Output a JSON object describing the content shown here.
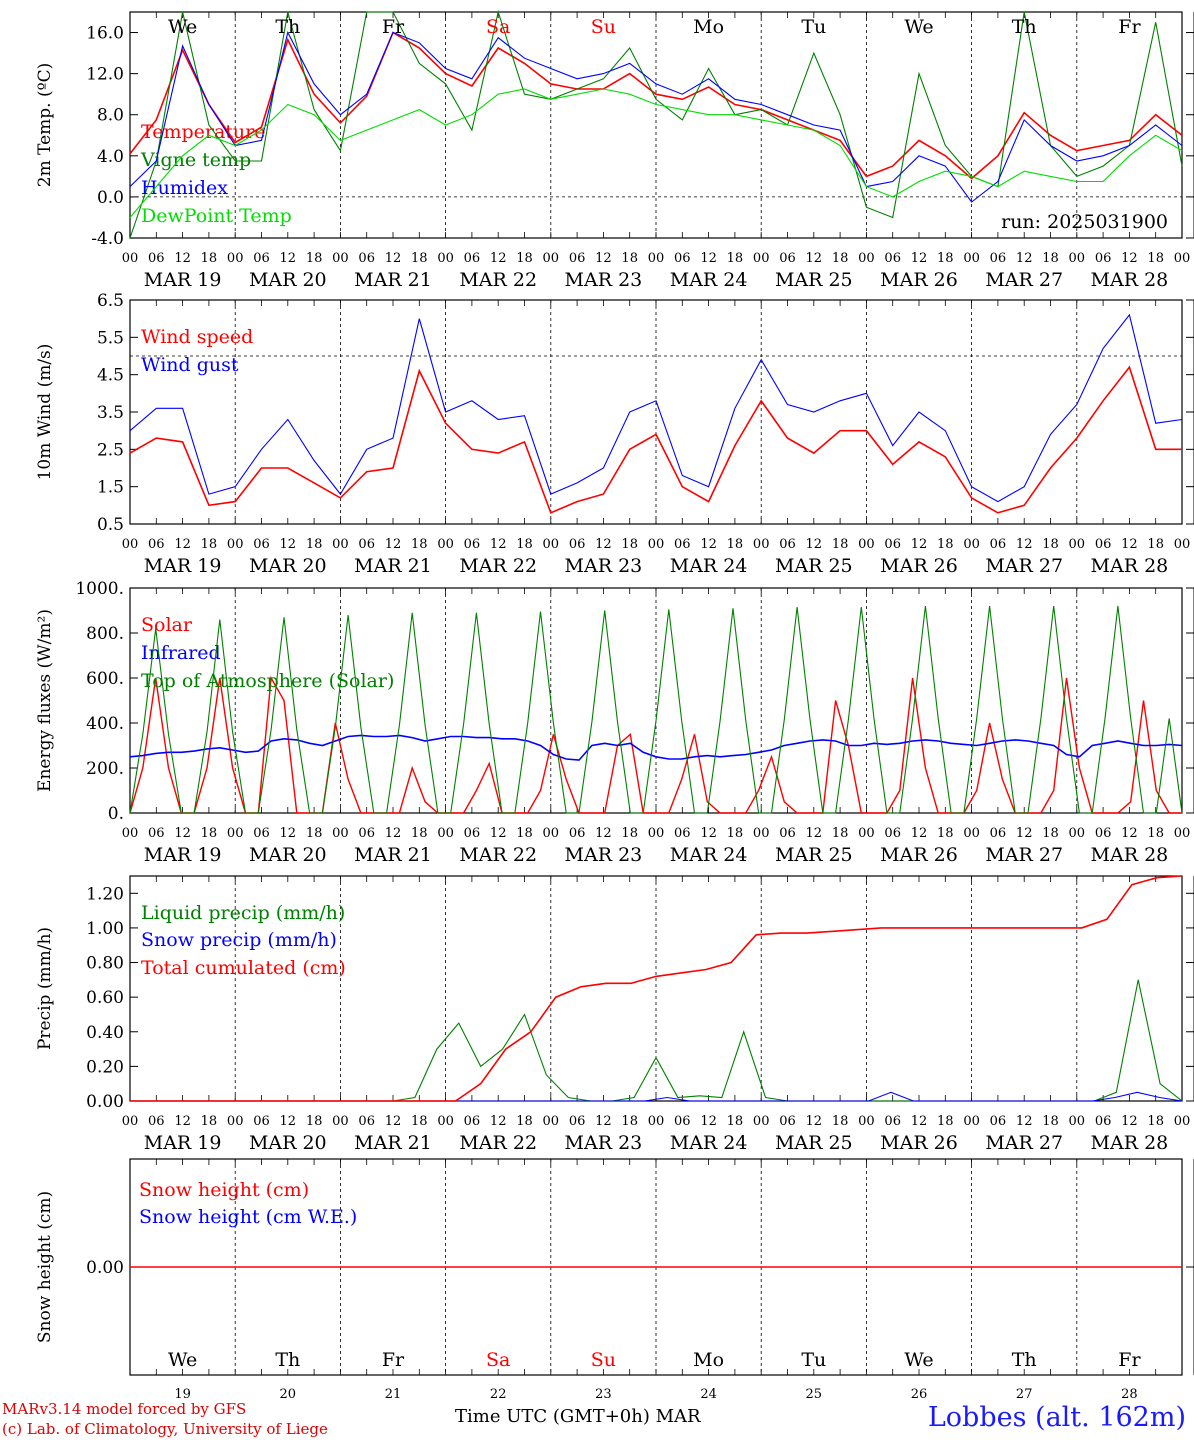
{
  "run_label": "run: 2025031900",
  "days": [
    "MAR 19",
    "MAR 20",
    "MAR 21",
    "MAR 22",
    "MAR 23",
    "MAR 24",
    "MAR 25",
    "MAR 26",
    "MAR 27",
    "MAR 28"
  ],
  "day_numbers": [
    "19",
    "20",
    "21",
    "22",
    "23",
    "24",
    "25",
    "26",
    "27",
    "28"
  ],
  "weekdays": [
    "We",
    "Th",
    "Fr",
    "Sa",
    "Su",
    "Mo",
    "Tu",
    "We",
    "Th",
    "Fr"
  ],
  "weekend_color": "#ff0000",
  "weekday_color": "#000000",
  "hour_ticks": [
    "00",
    "06",
    "12",
    "18"
  ],
  "footer": {
    "model": "MARv3.14 model forced by GFS",
    "lab": "(c) Lab. of Climatology, University of Liege",
    "time_axis": "Time UTC (GMT+0h)",
    "month": "MAR",
    "station": "Lobbes (alt. 162m)"
  },
  "chart_data": [
    {
      "type": "line",
      "ylabel": "2m Temp. (ºC)",
      "yticks": [
        "16.0",
        "12.0",
        "8.0",
        "4.0",
        "0.0",
        "-4.0"
      ],
      "ylim": [
        -4,
        18
      ],
      "hline": 0,
      "x_step_hours": 6,
      "series": [
        {
          "name": "Temperature",
          "color": "#ff0000",
          "width": 1.6,
          "values": [
            4.2,
            7.5,
            14.3,
            9,
            5.3,
            6.8,
            15.3,
            10,
            7.2,
            9.8,
            16,
            14.5,
            12,
            10.8,
            14.5,
            13,
            11,
            10.5,
            10.5,
            12,
            10,
            9.5,
            10.7,
            9,
            8.5,
            7.5,
            6.5,
            5.5,
            2,
            3,
            5.5,
            4,
            1.8,
            4,
            8.2,
            6,
            4.5,
            5,
            5.5,
            8,
            6
          ]
        },
        {
          "name": "Vigne temp",
          "color": "#008000",
          "width": 1.1,
          "values": [
            -4,
            3.5,
            18,
            7,
            3.5,
            3.5,
            18,
            8.5,
            4.5,
            18,
            18,
            13,
            11,
            6.5,
            18,
            10,
            9.5,
            10.5,
            11.5,
            14.5,
            9.5,
            7.5,
            12.5,
            8,
            8.5,
            7,
            14,
            8,
            -1,
            -2,
            12,
            5,
            2,
            1,
            18,
            5,
            2,
            3,
            5,
            17,
            3
          ]
        },
        {
          "name": "Humidex",
          "color": "#0000ff",
          "width": 1.1,
          "values": [
            1,
            3.5,
            14.7,
            9,
            5,
            5.5,
            16,
            11,
            8,
            10,
            16,
            15,
            12.5,
            11.5,
            15.5,
            13.5,
            12.5,
            11.5,
            12,
            13,
            11,
            10,
            11.5,
            9.5,
            9,
            8,
            7,
            6.5,
            1,
            1.5,
            4,
            3,
            -0.5,
            1.5,
            7.5,
            5,
            3.5,
            4,
            5,
            7,
            5
          ]
        },
        {
          "name": "DewPoint Temp",
          "color": "#00dd00",
          "width": 1.1,
          "values": [
            -2,
            1,
            4,
            6,
            5,
            6.5,
            9,
            8,
            5.5,
            6.5,
            7.5,
            8.5,
            7,
            8,
            10,
            10.5,
            9.5,
            10,
            10.5,
            10,
            9,
            8.5,
            8,
            8,
            7.5,
            7,
            6.5,
            5,
            1,
            0,
            1.5,
            2.5,
            2,
            1,
            2.5,
            2,
            1.5,
            1.5,
            4,
            6,
            4.5
          ]
        }
      ]
    },
    {
      "type": "line",
      "ylabel": "10m Wind (m/s)",
      "yticks": [
        "6.5",
        "5.5",
        "4.5",
        "3.5",
        "2.5",
        "1.5",
        "0.5"
      ],
      "ylim": [
        0.5,
        6.5
      ],
      "hline": 5,
      "x_step_hours": 6,
      "series": [
        {
          "name": "Wind speed",
          "color": "#ff0000",
          "width": 1.6,
          "values": [
            2.4,
            2.8,
            2.7,
            1,
            1.1,
            2,
            2,
            1.6,
            1.2,
            1.9,
            2,
            4.6,
            3.2,
            2.5,
            2.4,
            2.7,
            0.8,
            1.1,
            1.3,
            2.5,
            2.9,
            1.5,
            1.1,
            2.6,
            3.8,
            2.8,
            2.4,
            3,
            3,
            2.1,
            2.7,
            2.3,
            1.2,
            0.8,
            1,
            2,
            2.8,
            3.8,
            4.7,
            2.5,
            2.5
          ]
        },
        {
          "name": "Wind gust",
          "color": "#0000ff",
          "width": 1.1,
          "values": [
            3,
            3.6,
            3.6,
            1.3,
            1.5,
            2.5,
            3.3,
            2.2,
            1.3,
            2.5,
            2.8,
            6,
            3.5,
            3.8,
            3.3,
            3.4,
            1.3,
            1.6,
            2,
            3.5,
            3.8,
            1.8,
            1.5,
            3.6,
            4.9,
            3.7,
            3.5,
            3.8,
            4,
            2.6,
            3.5,
            3,
            1.5,
            1.1,
            1.5,
            2.9,
            3.7,
            5.2,
            6.1,
            3.2,
            3.3
          ]
        }
      ]
    },
    {
      "type": "line",
      "ylabel": "Energy fluxes (W/m²)",
      "yticks": [
        "1000.",
        "800.",
        "600.",
        "400.",
        "200.",
        "0."
      ],
      "ylim": [
        0,
        1000
      ],
      "x_step_hours": 6,
      "series": [
        {
          "name": "Solar",
          "color": "#ff0000",
          "width": 1.4,
          "values": [
            0,
            200,
            600,
            200,
            0,
            0,
            200,
            600,
            200,
            0,
            0,
            600,
            500,
            0,
            0,
            0,
            400,
            150,
            0,
            0,
            0,
            0,
            200,
            50,
            0,
            0,
            0,
            100,
            220,
            0,
            0,
            0,
            100,
            350,
            150,
            0,
            0,
            0,
            300,
            350,
            0,
            0,
            0,
            150,
            350,
            50,
            0,
            0,
            0,
            100,
            250,
            50,
            0,
            0,
            0,
            500,
            300,
            0,
            0,
            0,
            100,
            600,
            200,
            0,
            0,
            0,
            100,
            400,
            150,
            0,
            0,
            0,
            100,
            600,
            200,
            0,
            0,
            0,
            50,
            500,
            100,
            0,
            0
          ]
        },
        {
          "name": "Infrared",
          "color": "#0000ff",
          "width": 1.6,
          "values": [
            250,
            255,
            265,
            270,
            270,
            275,
            285,
            290,
            280,
            270,
            275,
            320,
            330,
            325,
            310,
            300,
            320,
            340,
            345,
            340,
            340,
            345,
            335,
            320,
            330,
            340,
            340,
            335,
            335,
            330,
            330,
            320,
            300,
            260,
            240,
            235,
            300,
            310,
            300,
            310,
            270,
            250,
            240,
            240,
            250,
            255,
            250,
            255,
            260,
            270,
            280,
            300,
            310,
            320,
            325,
            320,
            300,
            300,
            310,
            305,
            310,
            320,
            325,
            320,
            310,
            305,
            300,
            310,
            320,
            325,
            320,
            310,
            300,
            260,
            250,
            300,
            310,
            320,
            310,
            300,
            300,
            305,
            300
          ]
        },
        {
          "name": "Top of Atmosphere (Solar)",
          "color": "#008000",
          "width": 1.1,
          "values": [
            0,
            350,
            820,
            350,
            0,
            0,
            360,
            860,
            360,
            0,
            0,
            370,
            870,
            370,
            0,
            0,
            380,
            880,
            380,
            0,
            0,
            390,
            890,
            390,
            0,
            0,
            395,
            890,
            395,
            0,
            0,
            400,
            895,
            400,
            0,
            0,
            405,
            900,
            405,
            0,
            0,
            410,
            905,
            410,
            0,
            0,
            410,
            910,
            410,
            0,
            0,
            415,
            915,
            415,
            0,
            0,
            415,
            915,
            415,
            0,
            0,
            420,
            920,
            420,
            0,
            0,
            420,
            920,
            420,
            0,
            0,
            420,
            920,
            420,
            0,
            0,
            420,
            920,
            420,
            0,
            0,
            420,
            0
          ]
        }
      ]
    },
    {
      "type": "line",
      "ylabel": "Precip (mm/h)",
      "yticks": [
        "1.20",
        "1.00",
        "0.80",
        "0.60",
        "0.40",
        "0.20",
        "0.00"
      ],
      "ylim": [
        0,
        1.3
      ],
      "x_step_hours": 6,
      "series": [
        {
          "name": "Liquid precip (mm/h)",
          "color": "#008000",
          "width": 1.1,
          "values": [
            0,
            0,
            0,
            0,
            0,
            0,
            0,
            0,
            0,
            0,
            0,
            0,
            0,
            0.02,
            0.3,
            0.45,
            0.2,
            0.3,
            0.5,
            0.15,
            0.02,
            0,
            0,
            0.02,
            0.25,
            0.02,
            0.03,
            0.02,
            0.4,
            0.02,
            0,
            0,
            0,
            0,
            0,
            0,
            0,
            0,
            0,
            0,
            0,
            0,
            0,
            0,
            0,
            0.05,
            0.7,
            0.1,
            0
          ]
        },
        {
          "name": "Snow precip (mm/h)",
          "color": "#0000ff",
          "width": 1.1,
          "values": [
            0,
            0,
            0,
            0,
            0,
            0,
            0,
            0,
            0,
            0,
            0,
            0,
            0,
            0,
            0,
            0,
            0,
            0,
            0,
            0,
            0,
            0,
            0,
            0,
            0.02,
            0,
            0,
            0,
            0,
            0,
            0,
            0,
            0,
            0,
            0.05,
            0,
            0,
            0,
            0,
            0,
            0,
            0,
            0,
            0,
            0.02,
            0.05,
            0.02,
            0
          ]
        },
        {
          "name": "Total cumulated (cm)",
          "color": "#ff0000",
          "width": 1.6,
          "values": [
            0,
            0,
            0,
            0,
            0,
            0,
            0,
            0,
            0,
            0,
            0,
            0,
            0,
            0,
            0.1,
            0.3,
            0.4,
            0.6,
            0.66,
            0.68,
            0.68,
            0.72,
            0.74,
            0.76,
            0.8,
            0.96,
            0.97,
            0.97,
            0.98,
            0.99,
            1,
            1,
            1,
            1,
            1,
            1,
            1,
            1,
            1,
            1.05,
            1.25,
            1.29,
            1.3
          ]
        }
      ]
    },
    {
      "type": "line",
      "ylabel": "Snow height (cm)",
      "yticks": [
        "0.00"
      ],
      "ylim": [
        -1,
        1
      ],
      "x_step_hours": 6,
      "series": [
        {
          "name": "Snow height (cm)",
          "color": "#ff0000",
          "width": 1.4,
          "values": [
            0,
            0
          ]
        },
        {
          "name": "Snow height (cm W.E.)",
          "color": "#0000ff",
          "width": 1.4,
          "values": []
        }
      ]
    }
  ]
}
